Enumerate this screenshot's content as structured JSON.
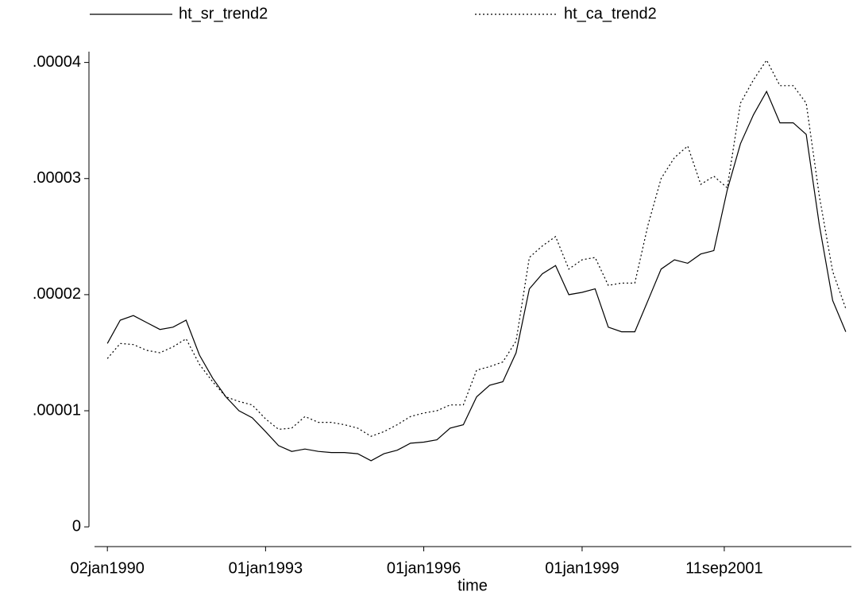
{
  "chart_data": {
    "type": "line",
    "x_title": "time",
    "x": [
      "1990-01-02",
      "1990-04-01",
      "1990-07-01",
      "1990-10-01",
      "1991-01-01",
      "1991-04-01",
      "1991-07-01",
      "1991-10-01",
      "1992-01-01",
      "1992-04-01",
      "1992-07-01",
      "1992-10-01",
      "1993-01-01",
      "1993-04-01",
      "1993-07-01",
      "1993-10-01",
      "1994-01-01",
      "1994-04-01",
      "1994-07-01",
      "1994-10-01",
      "1995-01-01",
      "1995-04-01",
      "1995-07-01",
      "1995-10-01",
      "1996-01-01",
      "1996-04-01",
      "1996-07-01",
      "1996-10-01",
      "1997-01-01",
      "1997-04-01",
      "1997-07-01",
      "1997-10-01",
      "1998-01-01",
      "1998-04-01",
      "1998-07-01",
      "1998-10-01",
      "1999-01-01",
      "1999-04-01",
      "1999-07-01",
      "1999-10-01",
      "2000-01-01",
      "2000-04-01",
      "2000-07-01",
      "2000-10-01",
      "2001-01-01",
      "2001-04-01",
      "2001-07-01",
      "2001-10-01",
      "2002-01-01",
      "2002-04-01",
      "2002-07-01",
      "2002-10-01",
      "2003-01-01",
      "2003-04-01",
      "2003-07-01",
      "2003-10-01",
      "2003-12-31"
    ],
    "series": [
      {
        "name": "ht_sr_trend2",
        "color": "#000000",
        "dash": "solid",
        "values": [
          1.58e-05,
          1.78e-05,
          1.82e-05,
          1.76e-05,
          1.7e-05,
          1.72e-05,
          1.78e-05,
          1.48e-05,
          1.28e-05,
          1.12e-05,
          1e-05,
          9.4e-06,
          8.2e-06,
          7e-06,
          6.5e-06,
          6.7e-06,
          6.5e-06,
          6.4e-06,
          6.4e-06,
          6.3e-06,
          5.7e-06,
          6.3e-06,
          6.6e-06,
          7.2e-06,
          7.3e-06,
          7.5e-06,
          8.5e-06,
          8.8e-06,
          1.12e-05,
          1.22e-05,
          1.25e-05,
          1.5e-05,
          2.05e-05,
          2.18e-05,
          2.25e-05,
          2e-05,
          2.02e-05,
          2.05e-05,
          1.72e-05,
          1.68e-05,
          1.68e-05,
          1.95e-05,
          2.22e-05,
          2.3e-05,
          2.27e-05,
          2.35e-05,
          2.38e-05,
          2.9e-05,
          3.3e-05,
          3.55e-05,
          3.75e-05,
          3.48e-05,
          3.48e-05,
          3.38e-05,
          2.6e-05,
          1.95e-05,
          1.68e-05
        ]
      },
      {
        "name": "ht_ca_trend2",
        "color": "#000000",
        "dash": "dotted",
        "values": [
          1.45e-05,
          1.58e-05,
          1.57e-05,
          1.52e-05,
          1.5e-05,
          1.55e-05,
          1.62e-05,
          1.4e-05,
          1.25e-05,
          1.12e-05,
          1.08e-05,
          1.05e-05,
          9.3e-06,
          8.4e-06,
          8.5e-06,
          9.5e-06,
          9e-06,
          9e-06,
          8.8e-06,
          8.5e-06,
          7.8e-06,
          8.2e-06,
          8.8e-06,
          9.5e-06,
          9.8e-06,
          1e-05,
          1.05e-05,
          1.05e-05,
          1.35e-05,
          1.38e-05,
          1.42e-05,
          1.6e-05,
          2.32e-05,
          2.42e-05,
          2.5e-05,
          2.22e-05,
          2.3e-05,
          2.32e-05,
          2.08e-05,
          2.1e-05,
          2.1e-05,
          2.6e-05,
          3e-05,
          3.18e-05,
          3.28e-05,
          2.95e-05,
          3.02e-05,
          2.92e-05,
          3.65e-05,
          3.85e-05,
          4.02e-05,
          3.8e-05,
          3.8e-05,
          3.65e-05,
          2.85e-05,
          2.2e-05,
          1.88e-05
        ]
      }
    ],
    "xlim": [
      "1989-10-05",
      "2004-02-08"
    ],
    "xticks": [
      {
        "value": "1990-01-02",
        "label": "02jan1990"
      },
      {
        "value": "1993-01-01",
        "label": "01jan1993"
      },
      {
        "value": "1996-01-01",
        "label": "01jan1996"
      },
      {
        "value": "1999-01-01",
        "label": "01jan1999"
      },
      {
        "value": "2001-09-11",
        "label": "11sep2001"
      }
    ],
    "ylim": [
      -1.7e-06,
      4.23e-05
    ],
    "yticks": [
      0,
      {
        "value": 1e-05,
        "label": ".00001"
      },
      {
        "value": 2e-05,
        "label": ".00002"
      },
      {
        "value": 3e-05,
        "label": ".00003"
      },
      {
        "value": 4e-05,
        "label": ".00004"
      }
    ],
    "legend": "top"
  }
}
